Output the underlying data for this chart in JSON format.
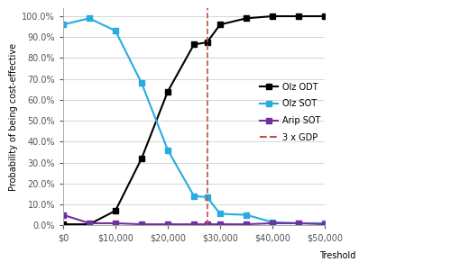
{
  "x": [
    0,
    5000,
    10000,
    15000,
    20000,
    25000,
    27500,
    30000,
    35000,
    40000,
    45000,
    50000
  ],
  "olz_odt": [
    0.005,
    0.005,
    0.07,
    0.32,
    0.64,
    0.865,
    0.875,
    0.96,
    0.99,
    1.0,
    1.0,
    1.0
  ],
  "olz_sot": [
    0.96,
    0.99,
    0.93,
    0.68,
    0.36,
    0.14,
    0.135,
    0.055,
    0.05,
    0.015,
    0.01,
    0.01
  ],
  "arip_sot": [
    0.05,
    0.01,
    0.01,
    0.005,
    0.005,
    0.005,
    0.005,
    0.005,
    0.005,
    0.01,
    0.01,
    0.005
  ],
  "gdp_line_x": 27500,
  "olz_odt_color": "#000000",
  "olz_sot_color": "#29ABE2",
  "arip_sot_color": "#7030A0",
  "gdp_color": "#C0504D",
  "ylabel": "Probability of being cost-effective",
  "xlabel": "Treshold",
  "ylim": [
    0.0,
    1.04
  ],
  "xlim": [
    0,
    50000
  ],
  "yticks": [
    0.0,
    0.1,
    0.2,
    0.3,
    0.4,
    0.5,
    0.6,
    0.7,
    0.8,
    0.9,
    1.0
  ],
  "xticks": [
    0,
    10000,
    20000,
    30000,
    40000,
    50000
  ],
  "xtick_labels": [
    "$0",
    "$10,000",
    "$20,000",
    "$30,000",
    "$40,000",
    "$50,000"
  ],
  "legend_labels": [
    "Olz ODT",
    "Olz SOT",
    "Arip SOT",
    "3 x GDP"
  ],
  "marker": "s",
  "markersize": 4,
  "linewidth": 1.5
}
